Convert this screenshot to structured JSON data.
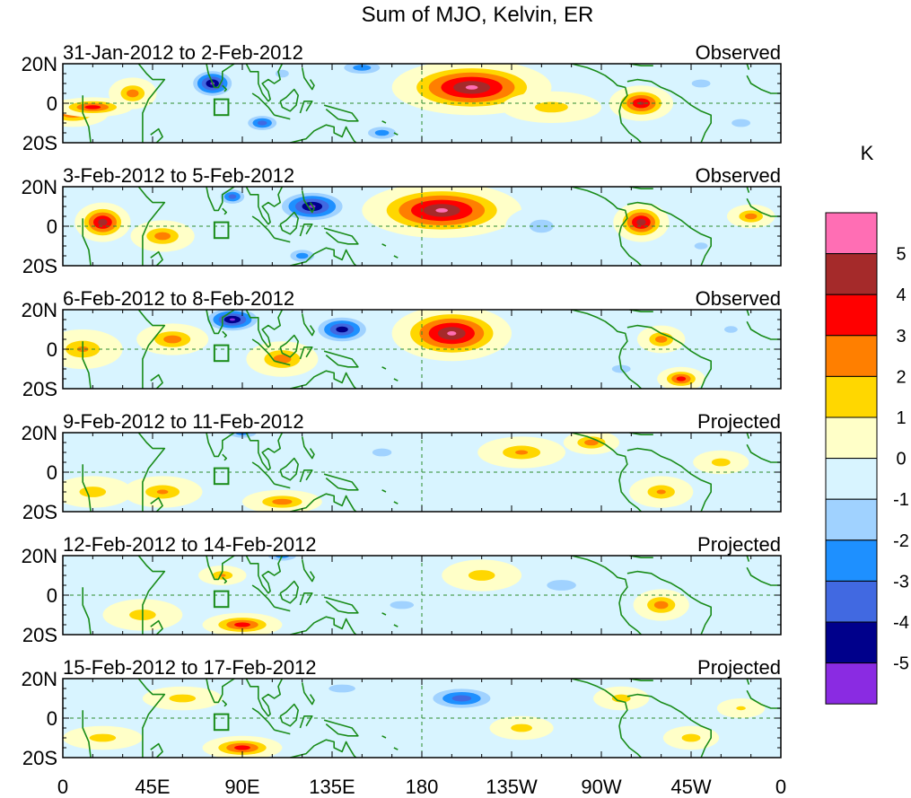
{
  "title": "Sum of MJO, Kelvin, ER",
  "units": "K",
  "panels": [
    {
      "dates": "31-Jan-2012 to 2-Feb-2012",
      "status": "Observed"
    },
    {
      "dates": "3-Feb-2012 to 5-Feb-2012",
      "status": "Observed"
    },
    {
      "dates": "6-Feb-2012 to 8-Feb-2012",
      "status": "Observed"
    },
    {
      "dates": "9-Feb-2012 to 11-Feb-2012",
      "status": "Projected"
    },
    {
      "dates": "12-Feb-2012 to 14-Feb-2012",
      "status": "Projected"
    },
    {
      "dates": "15-Feb-2012 to 17-Feb-2012",
      "status": "Projected"
    }
  ],
  "lat_labels": [
    "20N",
    "0",
    "20S"
  ],
  "lon_labels": [
    "0",
    "45E",
    "90E",
    "135E",
    "180",
    "135W",
    "90W",
    "45W",
    "0"
  ],
  "colorbar": {
    "colors": [
      "#ff6eb4",
      "#a52a2a",
      "#ff0000",
      "#ff7f00",
      "#ffd700",
      "#ffffc8",
      "#d8f4ff",
      "#a0d2ff",
      "#1e90ff",
      "#4169e1",
      "#00008b",
      "#8a2be2"
    ],
    "labels": [
      "5",
      "4",
      "3",
      "2",
      "1",
      "0",
      "-1",
      "-2",
      "-3",
      "-4",
      "-5"
    ]
  },
  "anomaly_blobs": [
    [
      [
        5,
        -5,
        18,
        7,
        3.5
      ],
      [
        15,
        -2,
        20,
        5,
        4
      ],
      [
        35,
        5,
        12,
        8,
        3
      ],
      [
        75,
        10,
        14,
        9,
        -5.5
      ],
      [
        100,
        -10,
        12,
        6,
        -4
      ],
      [
        110,
        15,
        10,
        6,
        -2
      ],
      [
        150,
        18,
        18,
        6,
        -3
      ],
      [
        160,
        -15,
        14,
        6,
        -3
      ],
      [
        205,
        8,
        40,
        14,
        5.5
      ],
      [
        245,
        -2,
        25,
        8,
        2
      ],
      [
        290,
        0,
        16,
        9,
        4.5
      ],
      [
        320,
        10,
        14,
        6,
        -2
      ],
      [
        340,
        -10,
        14,
        6,
        -2
      ]
    ],
    [
      [
        20,
        2,
        14,
        10,
        5
      ],
      [
        50,
        -5,
        16,
        8,
        3
      ],
      [
        85,
        15,
        10,
        6,
        -4
      ],
      [
        125,
        10,
        22,
        10,
        -5.5
      ],
      [
        120,
        -15,
        12,
        6,
        -3
      ],
      [
        190,
        8,
        40,
        14,
        5.5
      ],
      [
        240,
        0,
        18,
        10,
        -2
      ],
      [
        290,
        2,
        14,
        10,
        5
      ],
      [
        320,
        -10,
        10,
        5,
        -2
      ],
      [
        345,
        5,
        12,
        6,
        3
      ]
    ],
    [
      [
        10,
        0,
        20,
        10,
        2.5
      ],
      [
        55,
        5,
        18,
        8,
        3
      ],
      [
        85,
        15,
        18,
        8,
        -5.5
      ],
      [
        110,
        -5,
        18,
        9,
        3
      ],
      [
        140,
        10,
        18,
        9,
        -5
      ],
      [
        195,
        8,
        30,
        14,
        5.5
      ],
      [
        280,
        -10,
        14,
        6,
        -2
      ],
      [
        300,
        5,
        12,
        7,
        3
      ],
      [
        310,
        -15,
        12,
        6,
        4
      ],
      [
        335,
        10,
        10,
        5,
        -2
      ]
    ],
    [
      [
        15,
        -10,
        20,
        8,
        2
      ],
      [
        50,
        -10,
        20,
        8,
        2.5
      ],
      [
        90,
        20,
        14,
        5,
        -3
      ],
      [
        110,
        -15,
        20,
        6,
        3
      ],
      [
        160,
        10,
        24,
        10,
        -1.5
      ],
      [
        230,
        10,
        22,
        8,
        2.5
      ],
      [
        265,
        15,
        14,
        6,
        3
      ],
      [
        300,
        -10,
        16,
        8,
        2.5
      ],
      [
        330,
        5,
        14,
        6,
        2
      ]
    ],
    [
      [
        40,
        -10,
        20,
        8,
        2
      ],
      [
        80,
        10,
        12,
        5,
        2.5
      ],
      [
        90,
        -15,
        20,
        6,
        4
      ],
      [
        110,
        20,
        14,
        5,
        -3
      ],
      [
        170,
        -5,
        30,
        10,
        -1.5
      ],
      [
        210,
        10,
        20,
        8,
        2
      ],
      [
        250,
        5,
        22,
        8,
        -2
      ],
      [
        300,
        -5,
        14,
        8,
        3
      ],
      [
        330,
        10,
        14,
        5,
        -1
      ]
    ],
    [
      [
        20,
        -10,
        20,
        6,
        2
      ],
      [
        60,
        10,
        20,
        6,
        2
      ],
      [
        90,
        -15,
        20,
        6,
        4
      ],
      [
        140,
        15,
        20,
        6,
        -2
      ],
      [
        200,
        10,
        24,
        8,
        -4
      ],
      [
        230,
        -5,
        16,
        6,
        2
      ],
      [
        280,
        10,
        14,
        6,
        2
      ],
      [
        315,
        -10,
        14,
        6,
        2
      ],
      [
        340,
        5,
        12,
        5,
        1.5
      ]
    ]
  ]
}
